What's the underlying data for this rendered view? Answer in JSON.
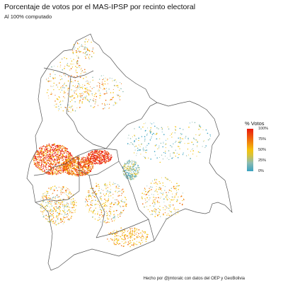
{
  "title": "Porcentaje de votos por el MAS-IPSP por recinto electoral",
  "subtitle": "Al 100% computado",
  "caption": "Hecho por @jmtoralc con datos del OEP y GeoBolivia",
  "legend": {
    "title": "% Votos",
    "labels": [
      "100%",
      "75%",
      "50%",
      "25%",
      "0%"
    ],
    "values": [
      1.0,
      0.75,
      0.5,
      0.25,
      0.0
    ]
  },
  "colors": {
    "high": "#e8190f",
    "upper": "#f06d0c",
    "mid": "#f4c20d",
    "lower": "#8dbcb1",
    "low": "#3aa2c1",
    "border": "#555555"
  }
}
